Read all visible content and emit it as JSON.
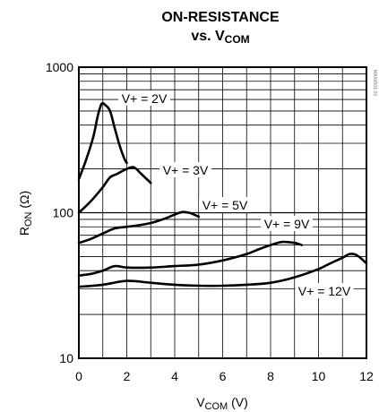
{
  "chart_data": {
    "type": "line",
    "title_line1": "ON-RESISTANCE",
    "title_line2_prefix": "vs. V",
    "title_line2_sub": "COM",
    "xlabel_main": "V",
    "xlabel_sub": "COM",
    "xlabel_unit": " (V)",
    "ylabel_main": "R",
    "ylabel_sub": "ON",
    "ylabel_unit": " (Ω)",
    "watermark": "MAX4501-03",
    "xlim": [
      0,
      12
    ],
    "ylim": [
      10,
      1000
    ],
    "y_scale": "log",
    "grid": true,
    "x_ticks": [
      "0",
      "2",
      "4",
      "6",
      "8",
      "10",
      "12"
    ],
    "y_ticks": [
      "10",
      "100",
      "1000"
    ],
    "series": [
      {
        "name": "V+ = 2V",
        "x": [
          0,
          0.3,
          0.6,
          0.8,
          0.95,
          1.1,
          1.3,
          1.5,
          1.7,
          1.9,
          2.0
        ],
        "y": [
          170,
          230,
          330,
          470,
          560,
          550,
          500,
          380,
          290,
          235,
          220
        ]
      },
      {
        "name": "V+ = 3V",
        "x": [
          0,
          0.5,
          1.0,
          1.3,
          1.6,
          2.0,
          2.3,
          2.6,
          3.0
        ],
        "y": [
          100,
          120,
          150,
          175,
          185,
          200,
          205,
          185,
          160
        ]
      },
      {
        "name": "V+ = 5V",
        "x": [
          0,
          0.5,
          1.0,
          1.5,
          2.0,
          2.5,
          3.0,
          3.5,
          4.0,
          4.3,
          4.6,
          5.0
        ],
        "y": [
          62,
          66,
          72,
          78,
          80,
          82,
          85,
          90,
          97,
          101,
          100,
          94
        ]
      },
      {
        "name": "V+ = 9V",
        "x": [
          0,
          0.5,
          1.0,
          1.5,
          2.0,
          3.0,
          4.0,
          5.0,
          6.0,
          7.0,
          7.5,
          8.0,
          8.5,
          9.0,
          9.3
        ],
        "y": [
          37,
          38,
          40,
          43,
          42,
          42,
          43,
          44,
          47,
          52,
          56,
          60,
          63,
          62,
          60
        ]
      },
      {
        "name": "V+ = 12V",
        "x": [
          0,
          1.0,
          2.0,
          3.0,
          4.0,
          5.0,
          6.0,
          7.0,
          8.0,
          9.0,
          10.0,
          10.5,
          11.0,
          11.3,
          11.6,
          12.0
        ],
        "y": [
          31,
          32,
          34,
          33,
          32,
          31.5,
          31.5,
          32,
          33,
          36,
          41,
          45,
          49,
          52,
          51,
          45
        ]
      }
    ],
    "annotations": [
      "V+ = 2V",
      "V+ = 3V",
      "V+ = 5V",
      "V+ = 9V",
      "V+ = 12V"
    ]
  }
}
